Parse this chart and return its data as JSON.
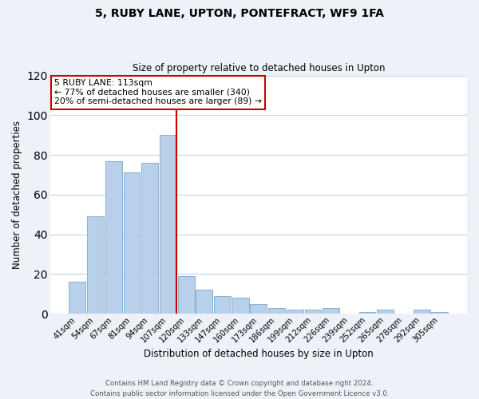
{
  "title": "5, RUBY LANE, UPTON, PONTEFRACT, WF9 1FA",
  "subtitle": "Size of property relative to detached houses in Upton",
  "xlabel": "Distribution of detached houses by size in Upton",
  "ylabel": "Number of detached properties",
  "bar_labels": [
    "41sqm",
    "54sqm",
    "67sqm",
    "81sqm",
    "94sqm",
    "107sqm",
    "120sqm",
    "133sqm",
    "147sqm",
    "160sqm",
    "173sqm",
    "186sqm",
    "199sqm",
    "212sqm",
    "226sqm",
    "239sqm",
    "252sqm",
    "265sqm",
    "278sqm",
    "292sqm",
    "305sqm"
  ],
  "bar_values": [
    16,
    49,
    77,
    71,
    76,
    90,
    19,
    12,
    9,
    8,
    5,
    3,
    2,
    2,
    3,
    0,
    1,
    2,
    0,
    2,
    1
  ],
  "bar_color": "#b8d0ea",
  "bar_edge_color": "#8ab0d0",
  "vline_x_index": 5,
  "vline_color": "#cc0000",
  "annotation_text": "5 RUBY LANE: 113sqm\n← 77% of detached houses are smaller (340)\n20% of semi-detached houses are larger (89) →",
  "annotation_box_color": "#ffffff",
  "annotation_box_edge_color": "#cc0000",
  "ylim": [
    0,
    120
  ],
  "yticks": [
    0,
    20,
    40,
    60,
    80,
    100,
    120
  ],
  "footer_line1": "Contains HM Land Registry data © Crown copyright and database right 2024.",
  "footer_line2": "Contains public sector information licensed under the Open Government Licence v3.0.",
  "background_color": "#eef2f8",
  "plot_bg_color": "#ffffff",
  "grid_color": "#c8d4e8"
}
